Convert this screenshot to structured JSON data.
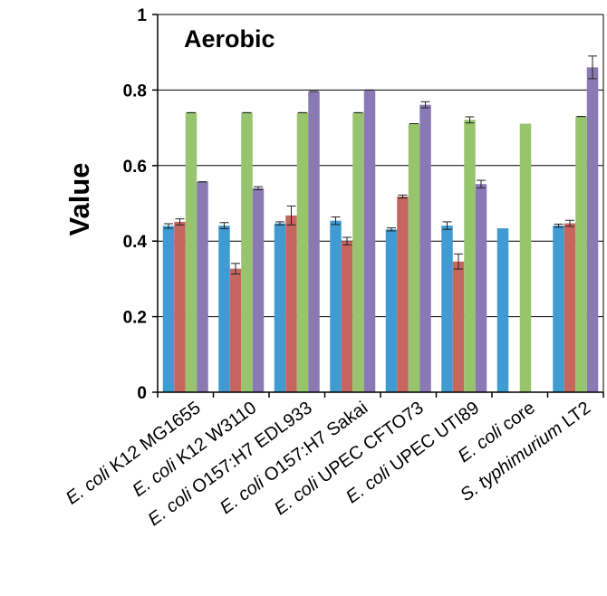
{
  "chart_data": {
    "type": "bar",
    "title": "Aerobic",
    "ylabel": "Value",
    "xlabel": "",
    "ylim": [
      0,
      1
    ],
    "yticks": [
      0,
      0.2,
      0.4,
      0.6,
      0.8,
      1
    ],
    "grid": true,
    "legend": "none",
    "categories": [
      "E. coli K12 MG1655",
      "E. coli K12 W3110",
      "E. coli O157:H7 EDL933",
      "E. coli O157:H7 Sakai",
      "E. coli UPEC CFTO73",
      "E. coli UPEC UTI89",
      "E. coli core",
      "S. typhimurium LT2"
    ],
    "category_parts": [
      [
        {
          "t": "E. coli",
          "i": true
        },
        {
          "t": " K12 MG1655",
          "i": false
        }
      ],
      [
        {
          "t": "E. coli",
          "i": true
        },
        {
          "t": " K12 W3110",
          "i": false
        }
      ],
      [
        {
          "t": "E. coli",
          "i": true
        },
        {
          "t": " O157:H7 EDL933",
          "i": false
        }
      ],
      [
        {
          "t": "E. coli",
          "i": true
        },
        {
          "t": " O157:H7 Sakai",
          "i": false
        }
      ],
      [
        {
          "t": "E. coli",
          "i": true
        },
        {
          "t": " UPEC CFTO73",
          "i": false
        }
      ],
      [
        {
          "t": "E. coli",
          "i": true
        },
        {
          "t": " UPEC UTI89",
          "i": false
        }
      ],
      [
        {
          "t": "E. coli",
          "i": true
        },
        {
          "t": " core",
          "i": false
        }
      ],
      [
        {
          "t": "S. typhimurium",
          "i": true
        },
        {
          "t": " LT2",
          "i": false
        }
      ]
    ],
    "series": [
      {
        "color": "#3f9bd1",
        "values": [
          0.44,
          0.441,
          0.447,
          0.454,
          0.431,
          0.441,
          0.434,
          0.441
        ],
        "errors": [
          0.006,
          0.008,
          0.004,
          0.01,
          0.004,
          0.01,
          null,
          0.004
        ]
      },
      {
        "color": "#c5675f",
        "values": [
          0.451,
          0.327,
          0.468,
          0.4,
          0.518,
          0.346,
          null,
          0.447
        ],
        "errors": [
          0.008,
          0.014,
          0.025,
          0.01,
          0.004,
          0.02,
          null,
          0.008
        ]
      },
      {
        "color": "#97c46d",
        "values": [
          0.74,
          0.74,
          0.74,
          0.74,
          0.711,
          0.721,
          0.711,
          0.73
        ],
        "errors": [
          0.0,
          0.0,
          0.0,
          0.0,
          0.0,
          0.008,
          null,
          0.0
        ]
      },
      {
        "color": "#8a79b4",
        "values": [
          0.557,
          0.54,
          0.796,
          0.8,
          0.761,
          0.551,
          null,
          0.86
        ],
        "errors": [
          0.0,
          0.004,
          0.0,
          0.0,
          0.008,
          0.01,
          null,
          0.03
        ]
      }
    ]
  }
}
